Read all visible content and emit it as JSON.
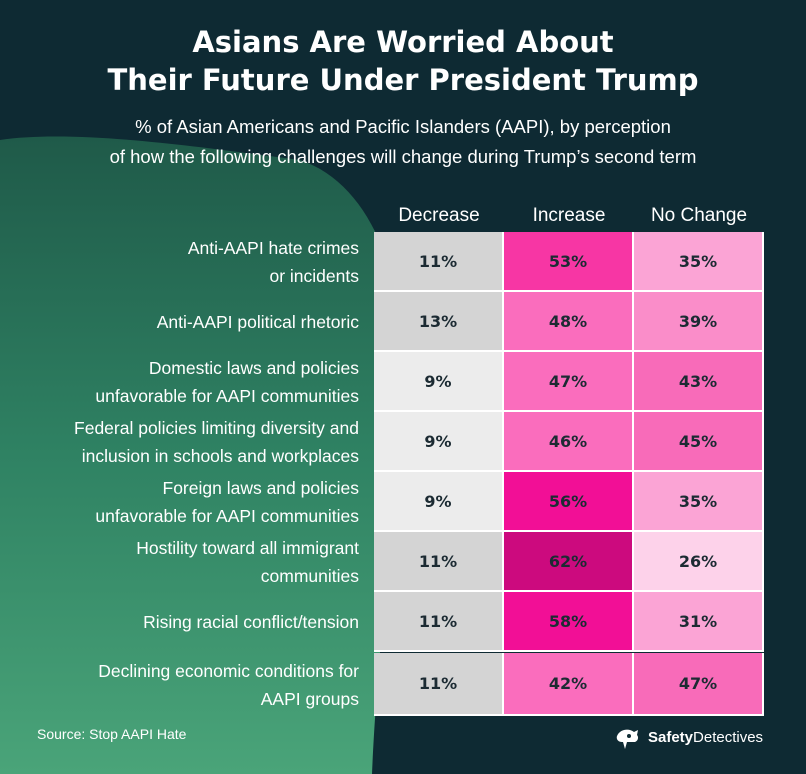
{
  "title_line1": "Asians Are Worried About",
  "title_line2": "Their Future Under President Trump",
  "subtitle_line1": "% of Asian Americans and Pacific Islanders (AAPI), by perception",
  "subtitle_line2": "of how the following challenges will change during Trump’s second term",
  "source": "Source: Stop AAPI Hate",
  "brand": {
    "part1": "Safety",
    "part2": "Detectives"
  },
  "colors": {
    "background": "#0e2a33",
    "green_shape": "#2f8263",
    "decrease_light": "#ececec",
    "decrease_dark": "#d4d4d4"
  },
  "chart_data": {
    "type": "table",
    "title": "Asians Are Worried About Their Future Under President Trump",
    "columns": [
      "Decrease",
      "Increase",
      "No Change"
    ],
    "rows": [
      {
        "label": [
          "Anti-AAPI hate crimes ",
          "or incidents"
        ],
        "values": [
          "11%",
          "53%",
          "35%"
        ],
        "numbers": [
          11,
          53,
          35
        ]
      },
      {
        "label": [
          "Anti-AAPI political rhetoric "
        ],
        "values": [
          "13%",
          "48%",
          "39%"
        ],
        "numbers": [
          13,
          48,
          39
        ]
      },
      {
        "label": [
          "Domestic laws and policies",
          "unfavorable for AAPI communities"
        ],
        "values": [
          "9%",
          "47%",
          "43%"
        ],
        "numbers": [
          9,
          47,
          43
        ]
      },
      {
        "label": [
          "Federal policies limiting diversity and",
          "inclusion in schools and workplaces"
        ],
        "values": [
          "9%",
          "46%",
          "45%"
        ],
        "numbers": [
          9,
          46,
          45
        ]
      },
      {
        "label": [
          "Foreign laws and policies ",
          "unfavorable for AAPI communities"
        ],
        "values": [
          "9%",
          "56%",
          "35%"
        ],
        "numbers": [
          9,
          56,
          35
        ]
      },
      {
        "label": [
          "Hostility toward all immigrant",
          "communities"
        ],
        "values": [
          "11%",
          "62%",
          "26%"
        ],
        "numbers": [
          11,
          62,
          26
        ]
      },
      {
        "label": [
          "Rising racial conflict/tension "
        ],
        "values": [
          "11%",
          "58%",
          "31%"
        ],
        "numbers": [
          11,
          58,
          31
        ]
      },
      {
        "label": [
          "Declining economic conditions for",
          "AAPI groups"
        ],
        "values": [
          "11%",
          "42%",
          "47%"
        ],
        "numbers": [
          11,
          42,
          47
        ]
      }
    ]
  }
}
